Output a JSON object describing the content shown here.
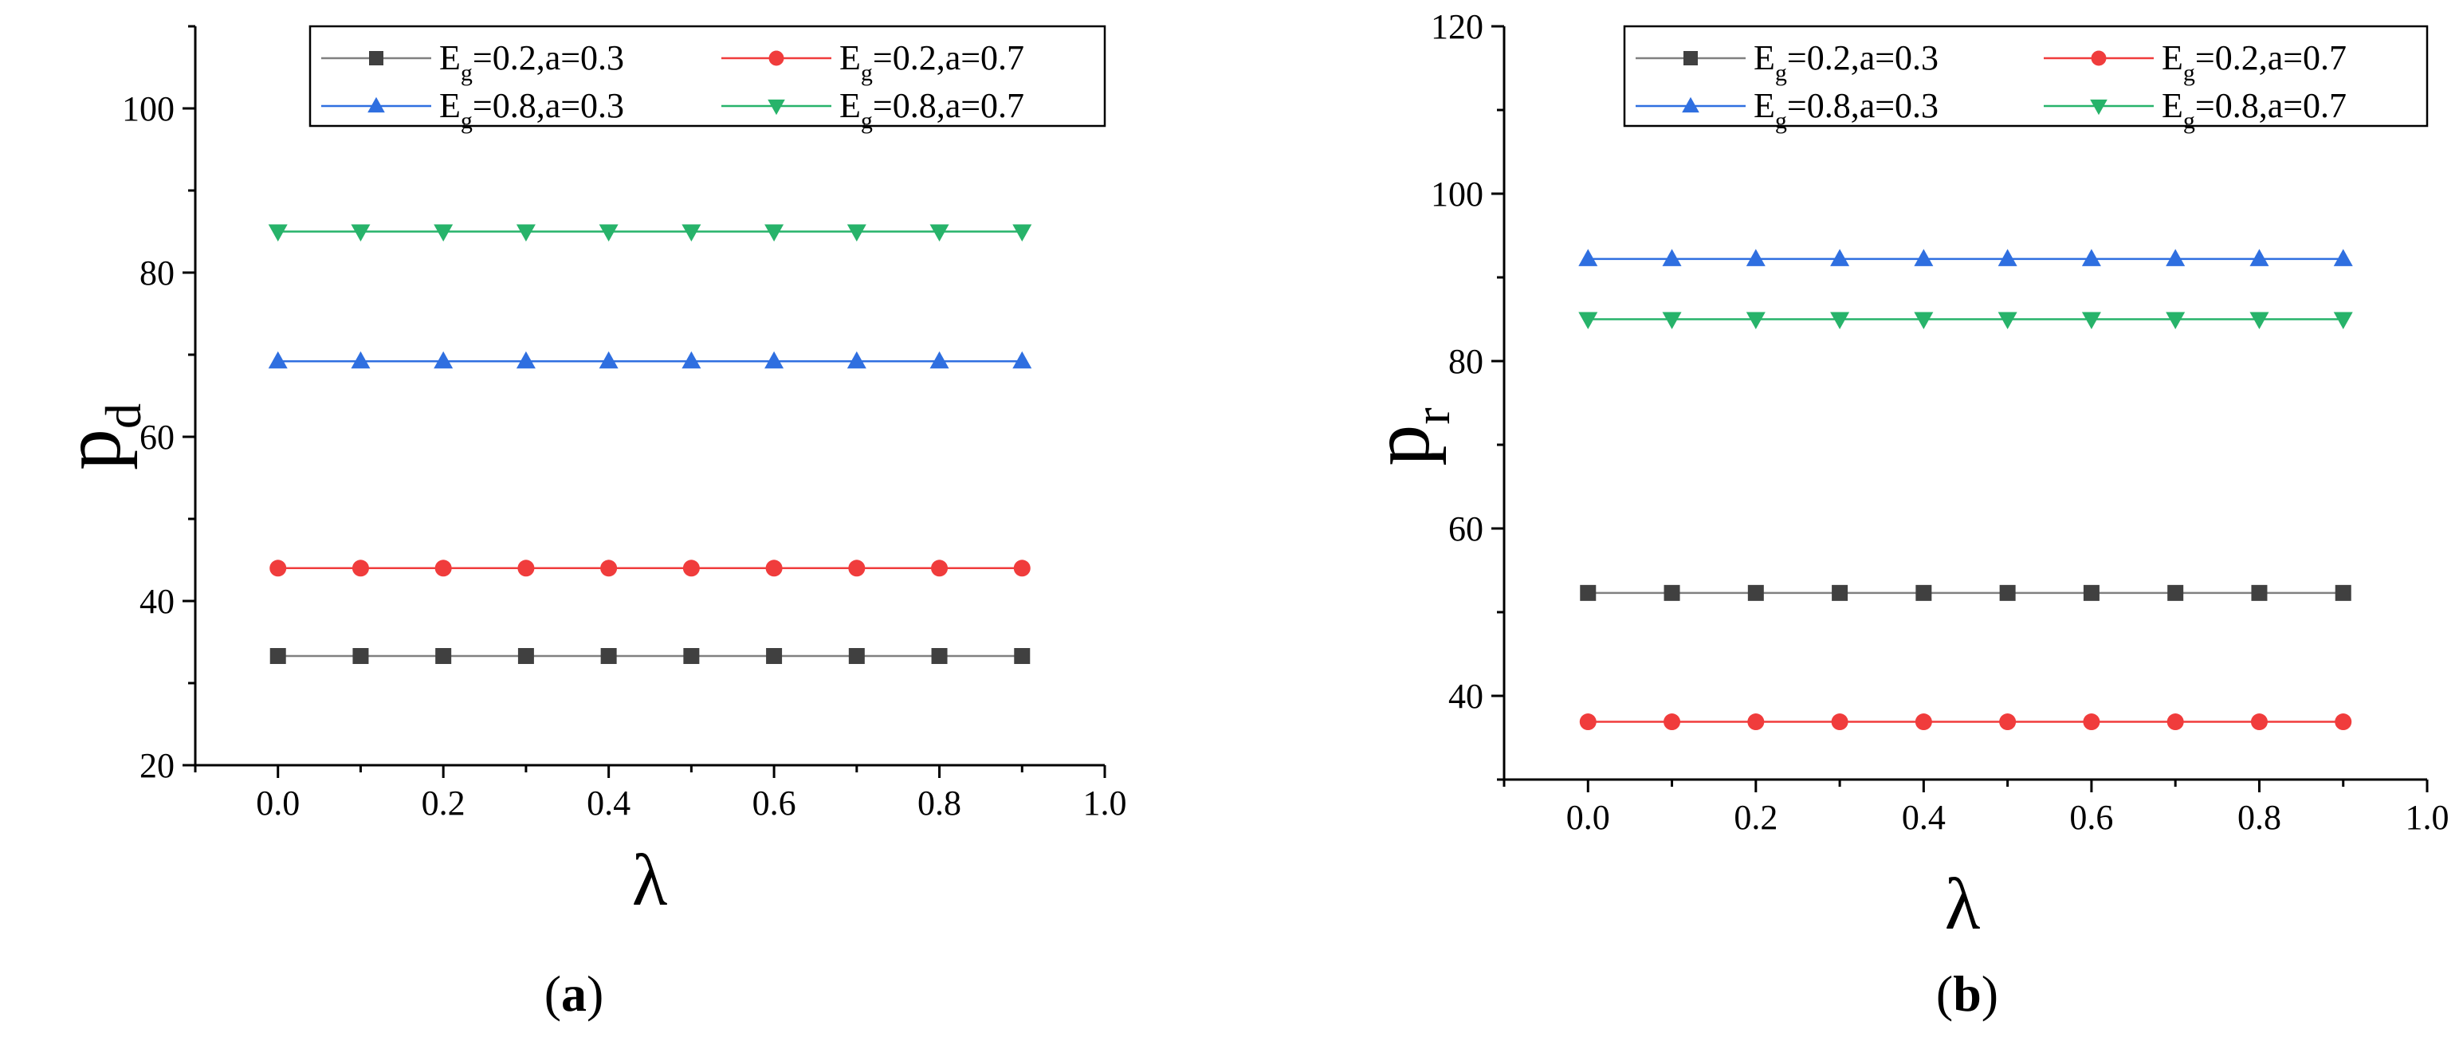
{
  "chart_data": [
    {
      "type": "line",
      "panel_label": {
        "open": "(",
        "letter": "a",
        "close": ")"
      },
      "xlabel": "λ",
      "ylabel": {
        "main": "p",
        "sub": "d"
      },
      "xlim": [
        -0.1,
        1.0
      ],
      "ylim": [
        20,
        110
      ],
      "xticks": [
        0.0,
        0.2,
        0.4,
        0.6,
        0.8,
        1.0
      ],
      "xtick_labels": [
        "0.0",
        "0.2",
        "0.4",
        "0.6",
        "0.8",
        "1.0"
      ],
      "yticks": [
        20,
        40,
        60,
        80,
        100
      ],
      "ytick_labels": [
        "20",
        "40",
        "60",
        "80",
        "100"
      ],
      "x": [
        0.0,
        0.1,
        0.2,
        0.3,
        0.4,
        0.5,
        0.6,
        0.7,
        0.8,
        0.9
      ],
      "legend_position": "top-right",
      "series": [
        {
          "label": {
            "E": "E",
            "sub": "g",
            "rest": "=0.2,a=0.3"
          },
          "marker": "square",
          "color": "#404040",
          "line_color": "#808080",
          "values": [
            33.3,
            33.3,
            33.3,
            33.3,
            33.3,
            33.3,
            33.3,
            33.3,
            33.3,
            33.3
          ]
        },
        {
          "label": {
            "E": "E",
            "sub": "g",
            "rest": "=0.2,a=0.7"
          },
          "marker": "circle",
          "color": "#f03c3c",
          "line_color": "#f03c3c",
          "values": [
            44.0,
            44.0,
            44.0,
            44.0,
            44.0,
            44.0,
            44.0,
            44.0,
            44.0,
            44.0
          ]
        },
        {
          "label": {
            "E": "E",
            "sub": "g",
            "rest": "=0.8,a=0.3"
          },
          "marker": "triangle-up",
          "color": "#2f6fe0",
          "line_color": "#2f6fe0",
          "values": [
            69.2,
            69.2,
            69.2,
            69.2,
            69.2,
            69.2,
            69.2,
            69.2,
            69.2,
            69.2
          ]
        },
        {
          "label": {
            "E": "E",
            "sub": "g",
            "rest": "=0.8,a=0.7"
          },
          "marker": "triangle-down",
          "color": "#27b36a",
          "line_color": "#27b36a",
          "values": [
            85.0,
            85.0,
            85.0,
            85.0,
            85.0,
            85.0,
            85.0,
            85.0,
            85.0,
            85.0
          ]
        }
      ]
    },
    {
      "type": "line",
      "panel_label": {
        "open": "(",
        "letter": "b",
        "close": ")"
      },
      "xlabel": "λ",
      "ylabel": {
        "main": "p",
        "sub": "r"
      },
      "xlim": [
        -0.1,
        1.0
      ],
      "ylim": [
        30,
        120
      ],
      "xticks": [
        0.0,
        0.2,
        0.4,
        0.6,
        0.8,
        1.0
      ],
      "xtick_labels": [
        "0.0",
        "0.2",
        "0.4",
        "0.6",
        "0.8",
        "1.0"
      ],
      "yticks": [
        40,
        60,
        80,
        100,
        120
      ],
      "ytick_labels": [
        "40",
        "60",
        "80",
        "100",
        "120"
      ],
      "x": [
        0.0,
        0.1,
        0.2,
        0.3,
        0.4,
        0.5,
        0.6,
        0.7,
        0.8,
        0.9
      ],
      "legend_position": "top-right",
      "series": [
        {
          "label": {
            "E": "E",
            "sub": "g",
            "rest": "=0.2,a=0.3"
          },
          "marker": "square",
          "color": "#404040",
          "line_color": "#808080",
          "values": [
            52.3,
            52.3,
            52.3,
            52.3,
            52.3,
            52.3,
            52.3,
            52.3,
            52.3,
            52.3
          ]
        },
        {
          "label": {
            "E": "E",
            "sub": "g",
            "rest": "=0.2,a=0.7"
          },
          "marker": "circle",
          "color": "#f03c3c",
          "line_color": "#f03c3c",
          "values": [
            36.9,
            36.9,
            36.9,
            36.9,
            36.9,
            36.9,
            36.9,
            36.9,
            36.9,
            36.9
          ]
        },
        {
          "label": {
            "E": "E",
            "sub": "g",
            "rest": "=0.8,a=0.3"
          },
          "marker": "triangle-up",
          "color": "#2f6fe0",
          "line_color": "#2f6fe0",
          "values": [
            92.2,
            92.2,
            92.2,
            92.2,
            92.2,
            92.2,
            92.2,
            92.2,
            92.2,
            92.2
          ]
        },
        {
          "label": {
            "E": "E",
            "sub": "g",
            "rest": "=0.8,a=0.7"
          },
          "marker": "triangle-down",
          "color": "#27b36a",
          "line_color": "#27b36a",
          "values": [
            85.0,
            85.0,
            85.0,
            85.0,
            85.0,
            85.0,
            85.0,
            85.0,
            85.0,
            85.0
          ]
        }
      ]
    }
  ]
}
